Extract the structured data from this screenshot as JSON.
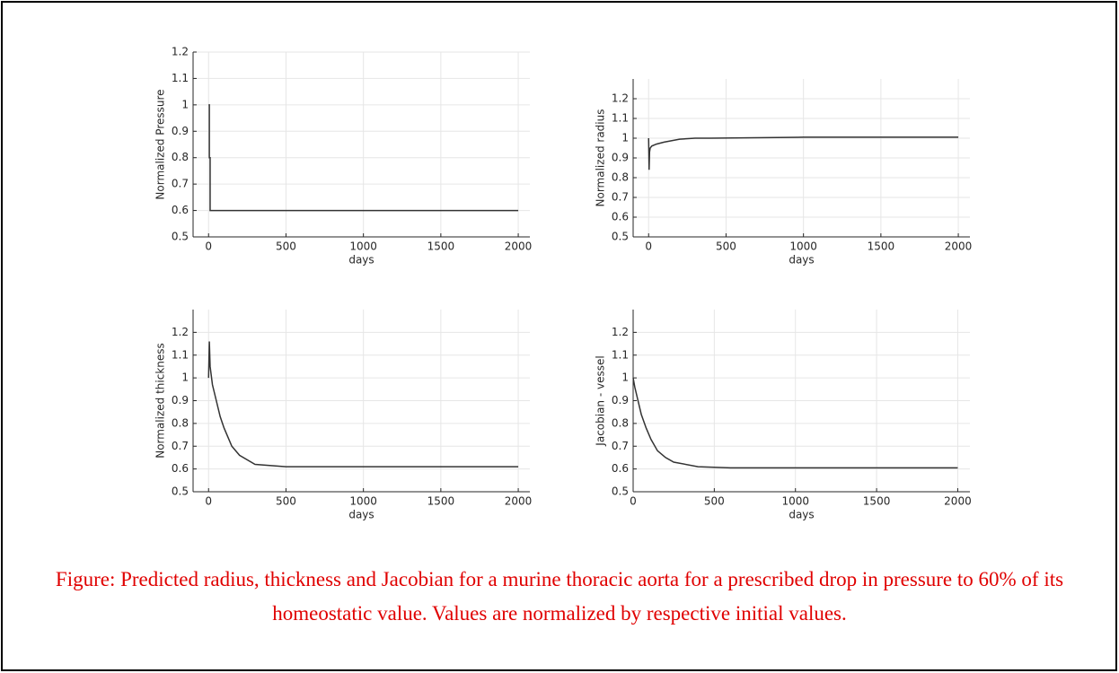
{
  "chart_data": [
    {
      "type": "line",
      "ylabel": "Normalized Pressure",
      "xlabel": "days",
      "color": "#333333",
      "grid": true,
      "x": [
        0,
        5,
        5,
        10,
        10,
        2000
      ],
      "values": [
        1,
        1,
        0.8,
        0.8,
        0.6,
        0.6
      ],
      "xlim": [
        -100,
        2075
      ],
      "xticks": [
        0,
        500,
        1000,
        1500,
        2000
      ],
      "ylim": [
        0.5,
        1.2
      ],
      "yticks": [
        0.5,
        0.6,
        0.7,
        0.8,
        0.9,
        1,
        1.1,
        1.2
      ]
    },
    {
      "type": "line",
      "ylabel": "Normalized radius",
      "xlabel": "days",
      "color": "#333333",
      "grid": true,
      "x": [
        0,
        3,
        6,
        10,
        20,
        50,
        100,
        200,
        300,
        400,
        1000,
        2000
      ],
      "values": [
        1,
        0.84,
        0.93,
        0.95,
        0.96,
        0.97,
        0.98,
        0.995,
        1.0,
        1.0,
        1.005,
        1.005
      ],
      "xlim": [
        -100,
        2075
      ],
      "xticks": [
        0,
        500,
        1000,
        1500,
        2000
      ],
      "ylim": [
        0.5,
        1.3
      ],
      "yticks": [
        0.5,
        0.6,
        0.7,
        0.8,
        0.9,
        1,
        1.1,
        1.2
      ]
    },
    {
      "type": "line",
      "ylabel": "Normalized thickness",
      "xlabel": "days",
      "color": "#333333",
      "grid": true,
      "x": [
        0,
        5,
        10,
        25,
        50,
        75,
        100,
        150,
        200,
        300,
        500,
        2000
      ],
      "values": [
        1.0,
        1.16,
        1.05,
        0.97,
        0.9,
        0.83,
        0.78,
        0.7,
        0.66,
        0.62,
        0.61,
        0.61
      ],
      "xlim": [
        -100,
        2075
      ],
      "xticks": [
        0,
        500,
        1000,
        1500,
        2000
      ],
      "ylim": [
        0.5,
        1.3
      ],
      "yticks": [
        0.5,
        0.6,
        0.7,
        0.8,
        0.9,
        1,
        1.1,
        1.2
      ]
    },
    {
      "type": "line",
      "ylabel": "Jacobian - vessel",
      "xlabel": "days",
      "color": "#333333",
      "grid": true,
      "x": [
        0,
        10,
        30,
        50,
        80,
        110,
        150,
        200,
        250,
        400,
        600,
        2000
      ],
      "values": [
        1.0,
        0.96,
        0.9,
        0.84,
        0.78,
        0.73,
        0.68,
        0.65,
        0.63,
        0.61,
        0.605,
        0.605
      ],
      "xlim": [
        0,
        2075
      ],
      "xticks": [
        0,
        500,
        1000,
        1500,
        2000
      ],
      "ylim": [
        0.5,
        1.3
      ],
      "yticks": [
        0.5,
        0.6,
        0.7,
        0.8,
        0.9,
        1,
        1.1,
        1.2
      ]
    }
  ],
  "caption": "Figure: Predicted radius, thickness and Jacobian for a murine thoracic aorta for a prescribed drop in pressure to 60% of its homeostatic value. Values are normalized by respective initial values."
}
